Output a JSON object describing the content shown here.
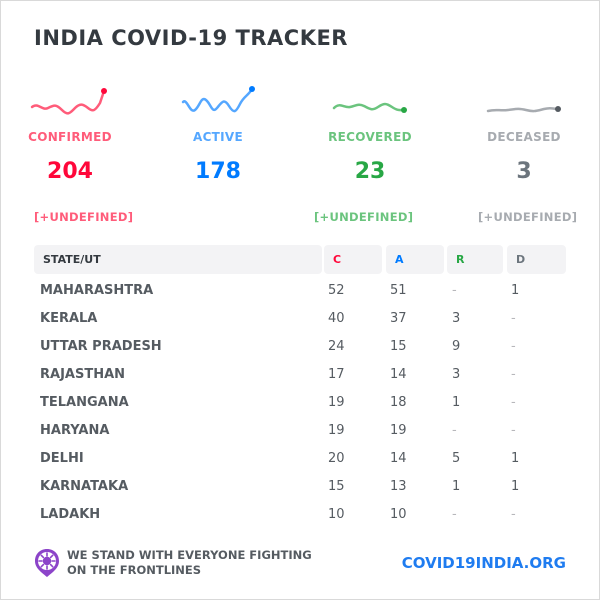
{
  "title": "INDIA COVID-19 TRACKER",
  "stats": [
    {
      "key": "confirmed",
      "label": "CONFIRMED",
      "value": "204",
      "delta": "[+UNDEFINED]",
      "color": "#ff073a",
      "label_color": "#ff5c7a",
      "delta_color": "#ff5c7a"
    },
    {
      "key": "active",
      "label": "ACTIVE",
      "value": "178",
      "delta": "",
      "color": "#007bff",
      "label_color": "#55a7ff",
      "delta_color": "#55a7ff"
    },
    {
      "key": "recovered",
      "label": "RECOVERED",
      "value": "23",
      "delta": "[+UNDEFINED]",
      "color": "#28a745",
      "label_color": "#6bc47e",
      "delta_color": "#6bc47e"
    },
    {
      "key": "deceased",
      "label": "DECEASED",
      "value": "3",
      "delta": "[+UNDEFINED]",
      "color": "#6c757d",
      "label_color": "#a7abb0",
      "delta_color": "#a7abb0"
    }
  ],
  "table": {
    "headers": [
      "STATE/UT",
      "C",
      "A",
      "R",
      "D"
    ],
    "header_colors": [
      "#343a40",
      "#ff073a",
      "#007bff",
      "#28a745",
      "#6c757d"
    ],
    "rows": [
      [
        "MAHARASHTRA",
        "52",
        "51",
        "-",
        "1"
      ],
      [
        "KERALA",
        "40",
        "37",
        "3",
        "-"
      ],
      [
        "UTTAR PRADESH",
        "24",
        "15",
        "9",
        "-"
      ],
      [
        "RAJASTHAN",
        "17",
        "14",
        "3",
        "-"
      ],
      [
        "TELANGANA",
        "19",
        "18",
        "1",
        "-"
      ],
      [
        "HARYANA",
        "19",
        "19",
        "-",
        "-"
      ],
      [
        "DELHI",
        "20",
        "14",
        "5",
        "1"
      ],
      [
        "KARNATAKA",
        "15",
        "13",
        "1",
        "1"
      ],
      [
        "LADAKH",
        "10",
        "10",
        "-",
        "-"
      ]
    ]
  },
  "footer": {
    "message_line1": "WE STAND WITH EVERYONE FIGHTING",
    "message_line2": "ON THE FRONTLINES",
    "site": "COVID19INDIA.ORG",
    "icon": "virus-badge-icon",
    "icon_color": "#8c44c9"
  }
}
